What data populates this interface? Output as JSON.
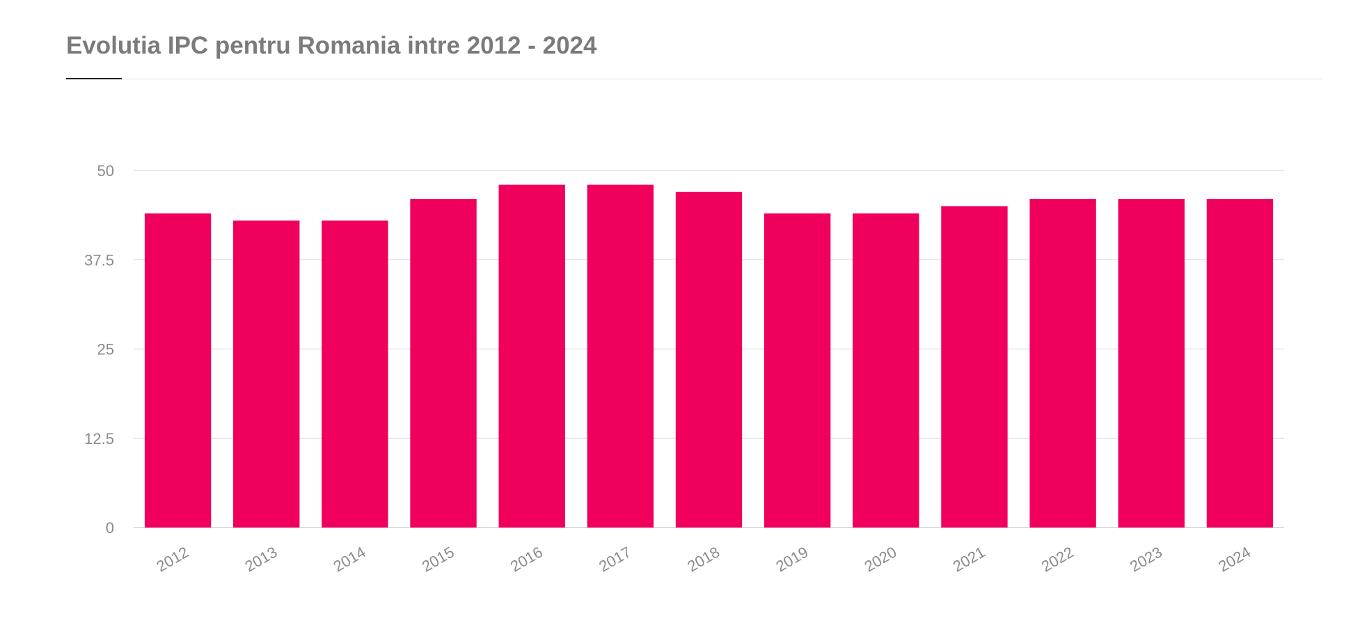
{
  "chart_data": {
    "type": "bar",
    "title": "Evolutia IPC pentru Romania intre 2012 - 2024",
    "xlabel": "",
    "ylabel": "",
    "categories": [
      "2012",
      "2013",
      "2014",
      "2015",
      "2016",
      "2017",
      "2018",
      "2019",
      "2020",
      "2021",
      "2022",
      "2023",
      "2024"
    ],
    "values": [
      44,
      43,
      43,
      46,
      48,
      48,
      47,
      44,
      44,
      45,
      46,
      46,
      46
    ],
    "ylim": [
      0,
      50
    ],
    "yticks": [
      0,
      12.5,
      25,
      37.5,
      50
    ],
    "ytick_labels": [
      "0",
      "12.5",
      "25",
      "37.5",
      "50"
    ],
    "grid": true,
    "legend": "none",
    "bar_color": "#f0005c"
  }
}
